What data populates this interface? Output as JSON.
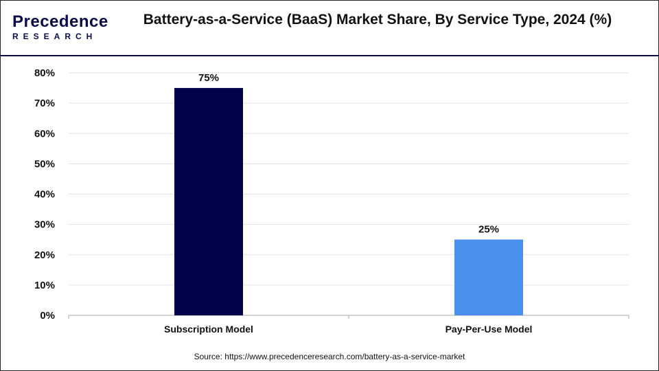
{
  "logo": {
    "line1": "Precedence",
    "line2": "RESEARCH"
  },
  "chart_data": {
    "type": "bar",
    "title": "Battery-as-a-Service (BaaS) Market Share, By Service Type, 2024 (%)",
    "categories": [
      "Subscription Model",
      "Pay-Per-Use Model"
    ],
    "values": [
      75,
      25
    ],
    "data_labels": [
      "75%",
      "25%"
    ],
    "colors": [
      "#02024a",
      "#4a90ea"
    ],
    "ylim": [
      0,
      80
    ],
    "yticks": [
      "0%",
      "10%",
      "20%",
      "30%",
      "40%",
      "50%",
      "60%",
      "70%",
      "80%"
    ],
    "grid": true,
    "xlabel": "",
    "ylabel": ""
  },
  "source": "Source: https://www.precedenceresearch.com/battery-as-a-service-market"
}
